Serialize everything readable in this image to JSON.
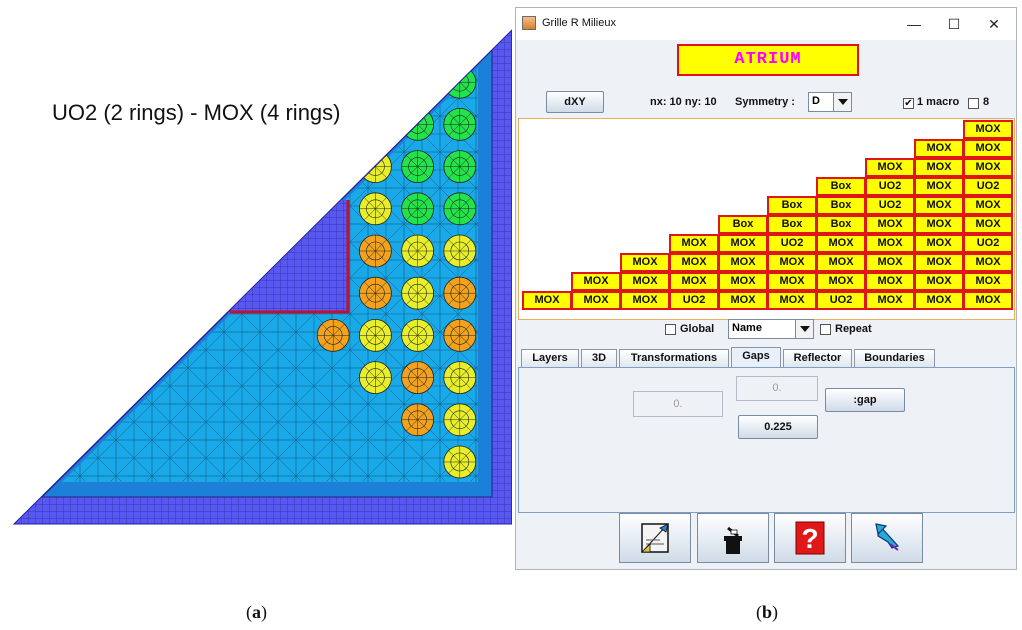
{
  "panel_a": {
    "title": "UO2 (2 rings) - MOX (4 rings)",
    "caption": "a"
  },
  "panel_b": {
    "caption": "b"
  },
  "window": {
    "title": "Grille R Milieux",
    "minimize": "—",
    "maximize": "☐",
    "close": "✕"
  },
  "assembly_name": "ATRIUM",
  "toolbar": {
    "dxy_label": "dXY",
    "nx_ny_label": "nx: 10 ny: 10",
    "symmetry_label": "Symmetry :",
    "symmetry_value": "D",
    "macro_label": "1 macro",
    "macro_checked": "✔",
    "eight_label": "8"
  },
  "grid": {
    "rows": [
      [
        "MOX"
      ],
      [
        "MOX",
        "MOX"
      ],
      [
        "MOX",
        "MOX",
        "MOX"
      ],
      [
        "Box",
        "UO2",
        "MOX",
        "UO2"
      ],
      [
        "Box",
        "Box",
        "UO2",
        "MOX",
        "MOX"
      ],
      [
        "Box",
        "Box",
        "Box",
        "MOX",
        "MOX",
        "MOX"
      ],
      [
        "MOX",
        "MOX",
        "UO2",
        "MOX",
        "MOX",
        "MOX",
        "UO2"
      ],
      [
        "MOX",
        "MOX",
        "MOX",
        "MOX",
        "MOX",
        "MOX",
        "MOX",
        "MOX"
      ],
      [
        "MOX",
        "MOX",
        "MOX",
        "MOX",
        "MOX",
        "MOX",
        "MOX",
        "MOX",
        "MOX"
      ],
      [
        "MOX",
        "MOX",
        "MOX",
        "UO2",
        "MOX",
        "MOX",
        "UO2",
        "MOX",
        "MOX",
        "MOX"
      ]
    ]
  },
  "options": {
    "global_label": "Global",
    "name_value": "Name",
    "repeat_label": "Repeat"
  },
  "tabs": [
    "Layers",
    "3D",
    "Transformations",
    "Gaps",
    "Reflector",
    "Boundaries"
  ],
  "active_tab": "Gaps",
  "gaps": {
    "field_left": "0.",
    "field_top": "0.",
    "gap_button": ":gap",
    "value_button": "0.225"
  },
  "bottom_tools": [
    "edit-icon",
    "delete-icon",
    "help-icon",
    "undo-icon"
  ],
  "colors": {
    "cell_fill": "#ffff00",
    "cell_border": "#e01515",
    "assembly_text": "#ff00ff",
    "mesh_water": "#1aa9e8",
    "mesh_reflector": "#5858f0",
    "pin_uo2_green": "#22e34a",
    "pin_mox_yellow": "#e8ef2a",
    "pin_mox_orange": "#f2a21c",
    "pin_mox_red": "#ee5420"
  }
}
